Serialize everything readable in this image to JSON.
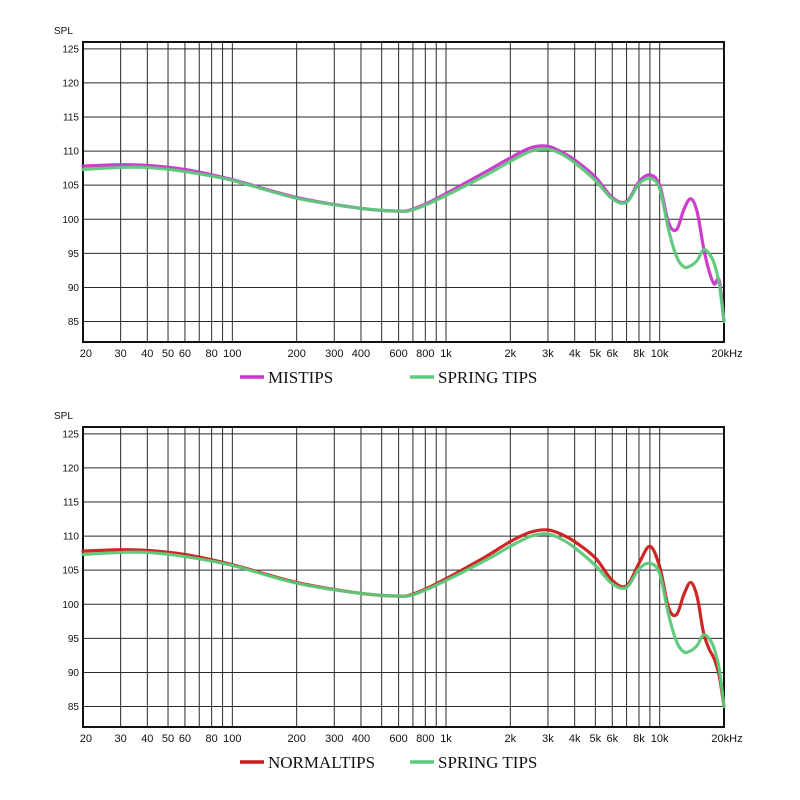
{
  "chart_data": [
    {
      "type": "line",
      "title": "",
      "ylabel": "SPL",
      "xlabel": "",
      "xscale": "log",
      "xlim": [
        20,
        20000
      ],
      "ylim": [
        82,
        126
      ],
      "grid": true,
      "legend_placement": "bottom-center",
      "x_ticks": [
        {
          "value": 20,
          "label": "20"
        },
        {
          "value": 30,
          "label": "30"
        },
        {
          "value": 40,
          "label": "40"
        },
        {
          "value": 50,
          "label": "50"
        },
        {
          "value": 60,
          "label": "60"
        },
        {
          "value": 80,
          "label": "80"
        },
        {
          "value": 100,
          "label": "100"
        },
        {
          "value": 200,
          "label": "200"
        },
        {
          "value": 300,
          "label": "300"
        },
        {
          "value": 400,
          "label": "400"
        },
        {
          "value": 600,
          "label": "600"
        },
        {
          "value": 800,
          "label": "800"
        },
        {
          "value": 1000,
          "label": "1k"
        },
        {
          "value": 2000,
          "label": "2k"
        },
        {
          "value": 3000,
          "label": "3k"
        },
        {
          "value": 4000,
          "label": "4k"
        },
        {
          "value": 5000,
          "label": "5k"
        },
        {
          "value": 6000,
          "label": "6k"
        },
        {
          "value": 8000,
          "label": "8k"
        },
        {
          "value": 10000,
          "label": "10k"
        },
        {
          "value": 20000,
          "label": "20kHz"
        }
      ],
      "y_ticks": [
        85,
        90,
        95,
        100,
        105,
        110,
        115,
        120,
        125
      ],
      "x": [
        20,
        30,
        40,
        60,
        100,
        200,
        400,
        600,
        700,
        900,
        1500,
        2000,
        2500,
        3000,
        3500,
        4000,
        5000,
        6000,
        7000,
        8000,
        9000,
        10000,
        11000,
        12000,
        13000,
        14000,
        15000,
        16000,
        17000,
        18000,
        19000,
        20000
      ],
      "series": [
        {
          "name": "MISTIPS",
          "color": "#cc33cc",
          "values": [
            107.8,
            108.0,
            107.9,
            107.3,
            105.8,
            103.2,
            101.6,
            101.2,
            101.5,
            103.0,
            106.8,
            109.0,
            110.5,
            110.7,
            109.8,
            108.7,
            106.2,
            103.2,
            102.6,
            105.5,
            106.5,
            105.0,
            99.5,
            98.5,
            101.5,
            103.0,
            101.0,
            96.0,
            92.5,
            90.5,
            91.0,
            85.0
          ]
        },
        {
          "name": "SPRING TIPS",
          "color": "#5cc879",
          "values": [
            107.3,
            107.6,
            107.6,
            107.0,
            105.7,
            103.1,
            101.6,
            101.2,
            101.4,
            102.8,
            106.3,
            108.5,
            110.0,
            110.3,
            109.5,
            108.3,
            105.7,
            103.0,
            102.5,
            105.2,
            106.0,
            104.5,
            98.5,
            94.5,
            93.0,
            93.2,
            94.0,
            95.5,
            95.0,
            93.5,
            90.5,
            85.0
          ]
        }
      ]
    },
    {
      "type": "line",
      "title": "",
      "ylabel": "SPL",
      "xlabel": "",
      "xscale": "log",
      "xlim": [
        20,
        20000
      ],
      "ylim": [
        82,
        126
      ],
      "grid": true,
      "legend_placement": "bottom-center",
      "x_ticks": [
        {
          "value": 20,
          "label": "20"
        },
        {
          "value": 30,
          "label": "30"
        },
        {
          "value": 40,
          "label": "40"
        },
        {
          "value": 50,
          "label": "50"
        },
        {
          "value": 60,
          "label": "60"
        },
        {
          "value": 80,
          "label": "80"
        },
        {
          "value": 100,
          "label": "100"
        },
        {
          "value": 200,
          "label": "200"
        },
        {
          "value": 300,
          "label": "300"
        },
        {
          "value": 400,
          "label": "400"
        },
        {
          "value": 600,
          "label": "600"
        },
        {
          "value": 800,
          "label": "800"
        },
        {
          "value": 1000,
          "label": "1k"
        },
        {
          "value": 2000,
          "label": "2k"
        },
        {
          "value": 3000,
          "label": "3k"
        },
        {
          "value": 4000,
          "label": "4k"
        },
        {
          "value": 5000,
          "label": "5k"
        },
        {
          "value": 6000,
          "label": "6k"
        },
        {
          "value": 8000,
          "label": "8k"
        },
        {
          "value": 10000,
          "label": "10k"
        },
        {
          "value": 20000,
          "label": "20kHz"
        }
      ],
      "y_ticks": [
        85,
        90,
        95,
        100,
        105,
        110,
        115,
        120,
        125
      ],
      "x": [
        20,
        30,
        40,
        60,
        100,
        200,
        400,
        600,
        700,
        900,
        1500,
        2000,
        2500,
        3000,
        3500,
        4000,
        5000,
        6000,
        7000,
        8000,
        9000,
        10000,
        11000,
        12000,
        13000,
        14000,
        15000,
        16000,
        17000,
        18000,
        19000,
        20000
      ],
      "series": [
        {
          "name": "NORMALTIPS",
          "color": "#cc1a1a",
          "values": [
            107.8,
            108.0,
            107.9,
            107.3,
            105.8,
            103.2,
            101.6,
            101.2,
            101.5,
            103.0,
            106.8,
            109.2,
            110.6,
            110.9,
            110.2,
            109.2,
            106.8,
            103.5,
            102.7,
            106.0,
            108.5,
            105.5,
            99.5,
            98.5,
            101.5,
            103.2,
            101.0,
            96.0,
            93.5,
            92.0,
            89.5,
            85.0
          ]
        },
        {
          "name": "SPRING TIPS",
          "color": "#5cc879",
          "values": [
            107.3,
            107.6,
            107.6,
            107.0,
            105.7,
            103.1,
            101.6,
            101.2,
            101.4,
            102.8,
            106.3,
            108.5,
            110.0,
            110.3,
            109.5,
            108.3,
            105.7,
            103.0,
            102.5,
            105.2,
            106.0,
            104.5,
            98.5,
            94.5,
            93.0,
            93.2,
            94.0,
            95.5,
            95.0,
            93.5,
            90.5,
            85.0
          ]
        }
      ]
    }
  ]
}
